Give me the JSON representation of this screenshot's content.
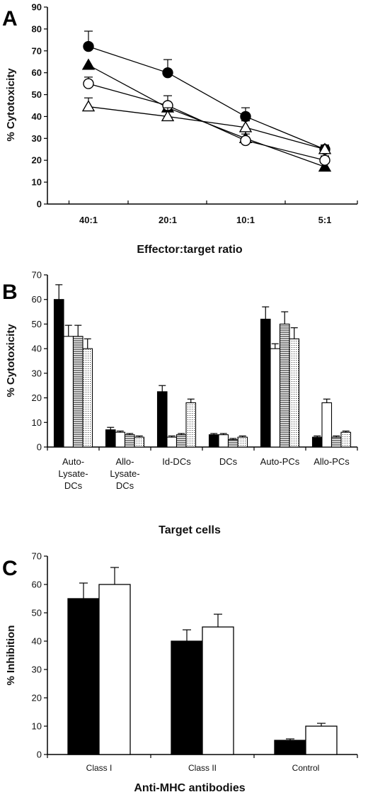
{
  "panels": {
    "a": "A",
    "b": "B",
    "c": "C"
  },
  "chart_data": [
    {
      "type": "line",
      "panel": "A",
      "ylabel": "% Cytotoxicity",
      "xlabel": "Effector:target ratio",
      "categories": [
        "40:1",
        "20:1",
        "10:1",
        "5:1"
      ],
      "ylim": [
        0,
        90
      ],
      "yticks": [
        0,
        10,
        20,
        30,
        40,
        50,
        60,
        70,
        80,
        90
      ],
      "grid": false,
      "series": [
        {
          "marker": "filled-circle",
          "values": [
            72,
            60,
            40,
            25
          ],
          "errors": [
            7,
            6,
            4,
            2
          ]
        },
        {
          "marker": "filled-triangle",
          "values": [
            63.5,
            44,
            30,
            17
          ],
          "errors": [
            0,
            0,
            2,
            0
          ]
        },
        {
          "marker": "open-circle",
          "values": [
            55,
            45,
            29,
            20
          ],
          "errors": [
            3,
            4.5,
            0,
            2
          ]
        },
        {
          "marker": "open-triangle",
          "values": [
            44.5,
            40,
            35,
            25
          ],
          "errors": [
            4,
            4,
            3,
            2
          ]
        }
      ]
    },
    {
      "type": "bar",
      "panel": "B",
      "ylabel": "% Cytotoxicity",
      "xlabel": "Target cells",
      "categories": [
        "Auto-Lysate-DCs",
        "Allo-Lysate-DCs",
        "Id-DCs",
        "DCs",
        "Auto-PCs",
        "Allo-PCs"
      ],
      "category_lines": [
        [
          "Auto-",
          "Lysate-",
          "DCs"
        ],
        [
          "Allo-",
          "Lysate-",
          "DCs"
        ],
        [
          "Id-DCs"
        ],
        [
          "DCs"
        ],
        [
          "Auto-PCs"
        ],
        [
          "Allo-PCs"
        ]
      ],
      "ylim": [
        0,
        70
      ],
      "yticks": [
        0,
        10,
        20,
        30,
        40,
        50,
        60,
        70
      ],
      "series": [
        {
          "fill": "black",
          "values": [
            60,
            7,
            22.5,
            5,
            52,
            4
          ],
          "errors": [
            6,
            1,
            2.5,
            0.5,
            5,
            0.5
          ]
        },
        {
          "fill": "white",
          "values": [
            45,
            6,
            4,
            5,
            40,
            18
          ],
          "errors": [
            4.5,
            0.5,
            0.5,
            0.5,
            2,
            1.5
          ]
        },
        {
          "fill": "horizontal-lines",
          "values": [
            45,
            5,
            5,
            3,
            50,
            4
          ],
          "errors": [
            4.5,
            0.5,
            0.5,
            0.5,
            5,
            0.5
          ]
        },
        {
          "fill": "dots",
          "values": [
            40,
            4,
            18,
            4,
            44,
            6
          ],
          "errors": [
            4,
            0.5,
            1.5,
            0.5,
            4.5,
            0.5
          ]
        }
      ]
    },
    {
      "type": "bar",
      "panel": "C",
      "ylabel": "% Inhibition",
      "xlabel": "Anti-MHC antibodies",
      "categories": [
        "Class I",
        "Class II",
        "Control"
      ],
      "ylim": [
        0,
        70
      ],
      "yticks": [
        0,
        10,
        20,
        30,
        40,
        50,
        60,
        70
      ],
      "series": [
        {
          "fill": "black",
          "values": [
            55,
            40,
            5
          ],
          "errors": [
            5.5,
            4,
            0.5
          ]
        },
        {
          "fill": "white",
          "values": [
            60,
            45,
            10
          ],
          "errors": [
            6,
            4.5,
            1
          ]
        }
      ]
    }
  ]
}
